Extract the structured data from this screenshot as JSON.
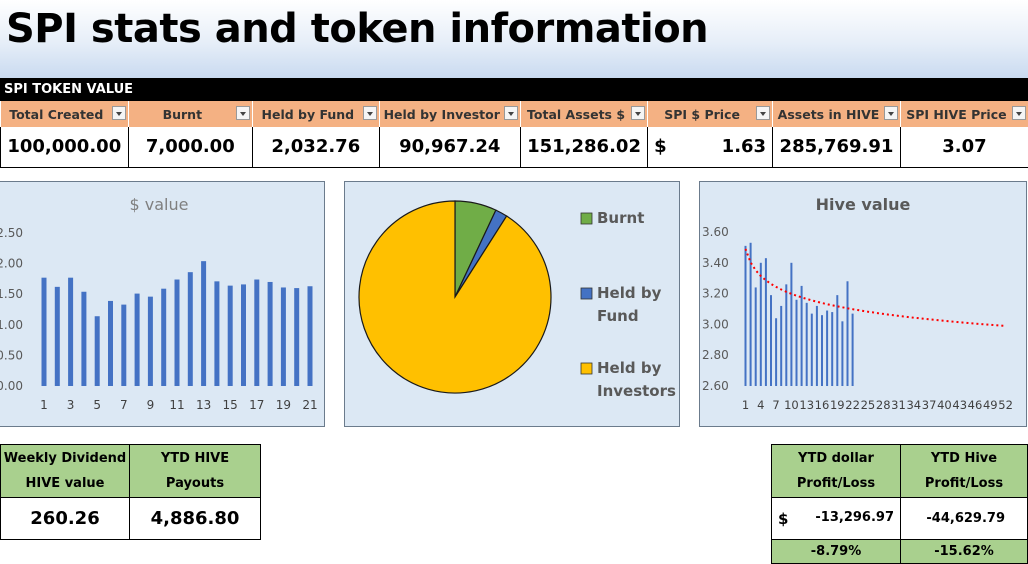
{
  "page_title": "SPI stats and token information",
  "section_title": "SPI TOKEN VALUE",
  "token_table": {
    "headers": [
      "Total Created",
      "Burnt",
      "Held by Fund",
      "Held by Investor",
      "Total Assets $",
      "SPI $ Price",
      "Assets in HIVE",
      "SPI HIVE Price"
    ],
    "values": [
      "100,000.00",
      "7,000.00",
      "2,032.76",
      "90,967.24",
      "151,286.02",
      "1.63",
      "285,769.91",
      "3.07"
    ],
    "currency_symbol": "$"
  },
  "chart_data": [
    {
      "type": "bar",
      "title": "$ value",
      "y_ticks": [
        "2.50",
        "2.00",
        "1.50",
        "1.00",
        "0.50",
        "0.00"
      ],
      "ylim": [
        0,
        2.5
      ],
      "x_ticks": [
        "1",
        "3",
        "5",
        "7",
        "9",
        "11",
        "13",
        "15",
        "17",
        "19",
        "21"
      ],
      "categories": [
        1,
        2,
        3,
        4,
        5,
        6,
        7,
        8,
        9,
        10,
        11,
        12,
        13,
        14,
        15,
        16,
        17,
        18,
        19,
        20,
        21
      ],
      "values": [
        1.77,
        1.62,
        1.77,
        1.54,
        1.14,
        1.39,
        1.33,
        1.51,
        1.46,
        1.59,
        1.74,
        1.86,
        2.04,
        1.71,
        1.64,
        1.66,
        1.74,
        1.7,
        1.61,
        1.6,
        1.63
      ],
      "color": "#4472c4"
    },
    {
      "type": "pie",
      "labels": [
        "Burnt",
        "Held by Fund",
        "Held by Investors"
      ],
      "values": [
        7000.0,
        2032.76,
        90967.24
      ],
      "colors": [
        "#70ad47",
        "#4472c4",
        "#ffc000"
      ],
      "legend": "right"
    },
    {
      "type": "bar",
      "title": "Hive value",
      "y_ticks": [
        "3.60",
        "3.40",
        "3.20",
        "3.00",
        "2.80",
        "2.60"
      ],
      "ylim": [
        2.6,
        3.6
      ],
      "x_ticks": [
        "1",
        "4",
        "7",
        "10",
        "13",
        "16",
        "19",
        "22",
        "25",
        "28",
        "31",
        "34",
        "37",
        "40",
        "43",
        "46",
        "49",
        "52"
      ],
      "categories": [
        1,
        2,
        3,
        4,
        5,
        6,
        7,
        8,
        9,
        10,
        11,
        12,
        13,
        14,
        15,
        16,
        17,
        18,
        19,
        20,
        21,
        22
      ],
      "values": [
        3.51,
        3.53,
        3.24,
        3.4,
        3.43,
        3.19,
        3.04,
        3.12,
        3.26,
        3.4,
        3.16,
        3.25,
        3.14,
        3.07,
        3.12,
        3.06,
        3.09,
        3.08,
        3.19,
        3.02,
        3.28,
        3.07
      ],
      "trendline": {
        "type": "log",
        "color": "#ff0000",
        "style": "dotted",
        "start": 3.49,
        "end": 2.99
      },
      "color": "#4472c4"
    }
  ],
  "dividend_table": {
    "headers": [
      [
        "Weekly Dividend",
        "HIVE value"
      ],
      [
        "YTD HIVE",
        "Payouts"
      ]
    ],
    "values": [
      "260.26",
      "4,886.80"
    ]
  },
  "profit_table": {
    "headers": [
      [
        "YTD dollar",
        "Profit/Loss"
      ],
      [
        "YTD Hive",
        "Profit/Loss"
      ]
    ],
    "currency_symbol": "$",
    "values": [
      "-13,296.97",
      "-44,629.79"
    ],
    "percents": [
      "-8.79%",
      "-15.62%"
    ]
  }
}
